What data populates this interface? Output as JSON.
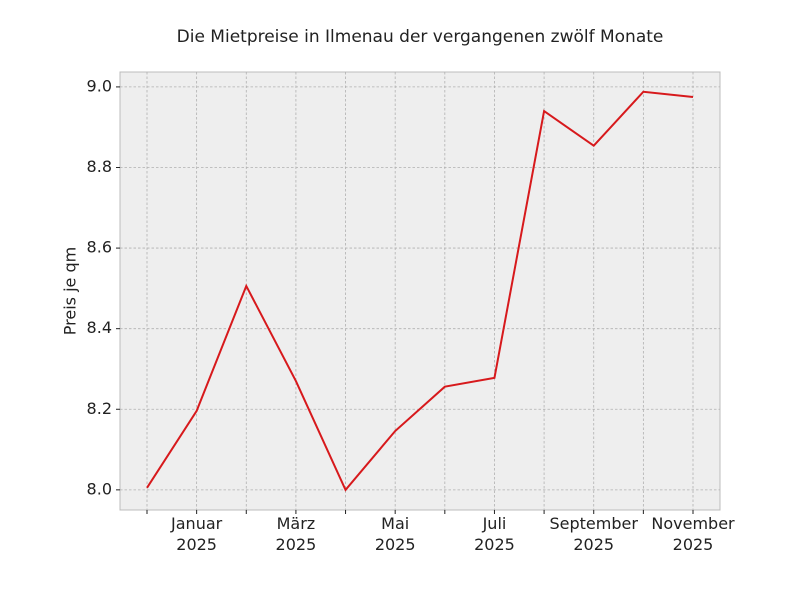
{
  "chart_data": {
    "type": "line",
    "title": "Die Mietpreise in Ilmenau der vergangenen zwölf Monate",
    "ylabel": "Preis je qm",
    "categories": [
      null,
      "Januar\n2025",
      null,
      "März\n2025",
      null,
      "Mai\n2025",
      null,
      "Juli\n2025",
      null,
      "September\n2025",
      null,
      "November\n2025"
    ],
    "series": [
      {
        "name": "Preis je qm",
        "color": "#d7191c",
        "values": [
          8.005,
          8.196,
          8.506,
          8.27,
          8.0,
          8.146,
          8.256,
          8.278,
          8.94,
          8.854,
          8.988,
          8.975
        ]
      }
    ],
    "ylim": [
      7.95,
      9.037
    ],
    "yticks": [
      {
        "value": 8,
        "label": "8.0"
      },
      8.2,
      8.4,
      8.6,
      8.8,
      {
        "value": 9,
        "label": "9.0"
      }
    ],
    "grid": true
  }
}
